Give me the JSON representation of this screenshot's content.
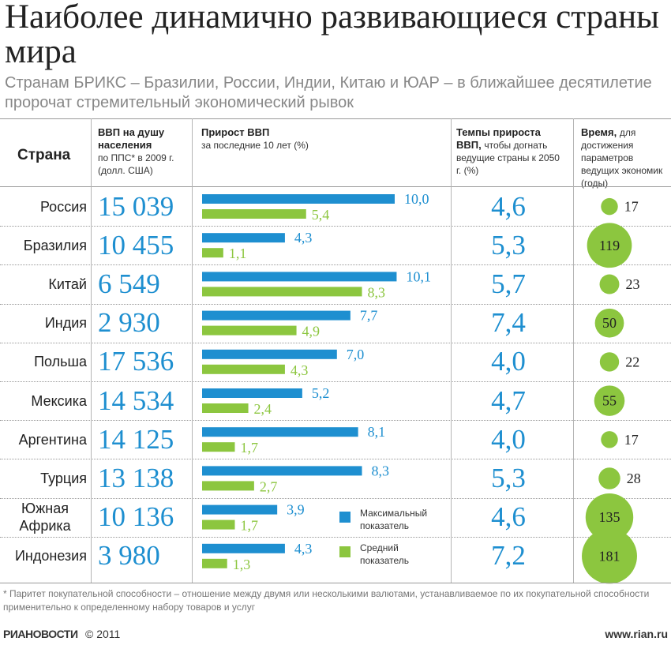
{
  "title": "Наиболее динамично развивающиеся страны мира",
  "subtitle": "Странам БРИКС – Бразилии, России, Индии, Китаю и ЮАР – в ближайшее десятилетие пророчат стремительный экономический рывок",
  "headers": {
    "country": "Страна",
    "gdp_bold": "ВВП на душу населения",
    "gdp_sub": "по ППС* в 2009 г. (долл. США)",
    "growth_bold": "Прирост ВВП",
    "growth_sub": "за последние 10 лет (%)",
    "rate_bold": "Темпы прироста ВВП,",
    "rate_sub": "чтобы догнать ведущие страны к 2050 г. (%)",
    "time_bold": "Время,",
    "time_sub": "для достижения параметров ведущих экономик (годы)"
  },
  "legend": {
    "max_label": "Максимальный показатель",
    "avg_label": "Средний показатель"
  },
  "colors": {
    "blue": "#1e8fd0",
    "green": "#8cc63f"
  },
  "chart_data": {
    "type": "table",
    "columns": [
      "Страна",
      "ВВП на душу населения по ППС* в 2009 г. (долл. США)",
      "Прирост ВВП за последние 10 лет (%) – максимальный показатель",
      "Прирост ВВП за последние 10 лет (%) – средний показатель",
      "Темпы прироста ВВП, чтобы догнать ведущие страны к 2050 г. (%)",
      "Время для достижения параметров ведущих экономик (годы)"
    ],
    "rows": [
      {
        "country": "Россия",
        "gdp": "15 039",
        "max": 10.0,
        "max_label": "10,0",
        "avg": 5.4,
        "avg_label": "5,4",
        "rate": "4,6",
        "years": 17
      },
      {
        "country": "Бразилия",
        "gdp": "10 455",
        "max": 4.3,
        "max_label": "4,3",
        "avg": 1.1,
        "avg_label": "1,1",
        "rate": "5,3",
        "years": 119
      },
      {
        "country": "Китай",
        "gdp": "6 549",
        "max": 10.1,
        "max_label": "10,1",
        "avg": 8.3,
        "avg_label": "8,3",
        "rate": "5,7",
        "years": 23
      },
      {
        "country": "Индия",
        "gdp": "2 930",
        "max": 7.7,
        "max_label": "7,7",
        "avg": 4.9,
        "avg_label": "4,9",
        "rate": "7,4",
        "years": 50
      },
      {
        "country": "Польша",
        "gdp": "17 536",
        "max": 7.0,
        "max_label": "7,0",
        "avg": 4.3,
        "avg_label": "4,3",
        "rate": "4,0",
        "years": 22
      },
      {
        "country": "Мексика",
        "gdp": "14 534",
        "max": 5.2,
        "max_label": "5,2",
        "avg": 2.4,
        "avg_label": "2,4",
        "rate": "4,7",
        "years": 55
      },
      {
        "country": "Аргентина",
        "gdp": "14 125",
        "max": 8.1,
        "max_label": "8,1",
        "avg": 1.7,
        "avg_label": "1,7",
        "rate": "4,0",
        "years": 17
      },
      {
        "country": "Турция",
        "gdp": "13 138",
        "max": 8.3,
        "max_label": "8,3",
        "avg": 2.7,
        "avg_label": "2,7",
        "rate": "5,3",
        "years": 28
      },
      {
        "country": "Южная Африка",
        "gdp": "10 136",
        "max": 3.9,
        "max_label": "3,9",
        "avg": 1.7,
        "avg_label": "1,7",
        "rate": "4,6",
        "years": 135
      },
      {
        "country": "Индонезия",
        "gdp": "3 980",
        "max": 4.3,
        "max_label": "4,3",
        "avg": 1.3,
        "avg_label": "1,3",
        "rate": "7,2",
        "years": 181
      }
    ]
  },
  "footnote": "* Паритет покупательной способности – отношение между двумя или несколькими валютами, устанавливаемое по их покупательной способности применительно к определенному набору товаров и услуг",
  "footer": {
    "logo": "РИАНОВОСТИ",
    "copyright": "© 2011",
    "site": "www.rian.ru"
  }
}
